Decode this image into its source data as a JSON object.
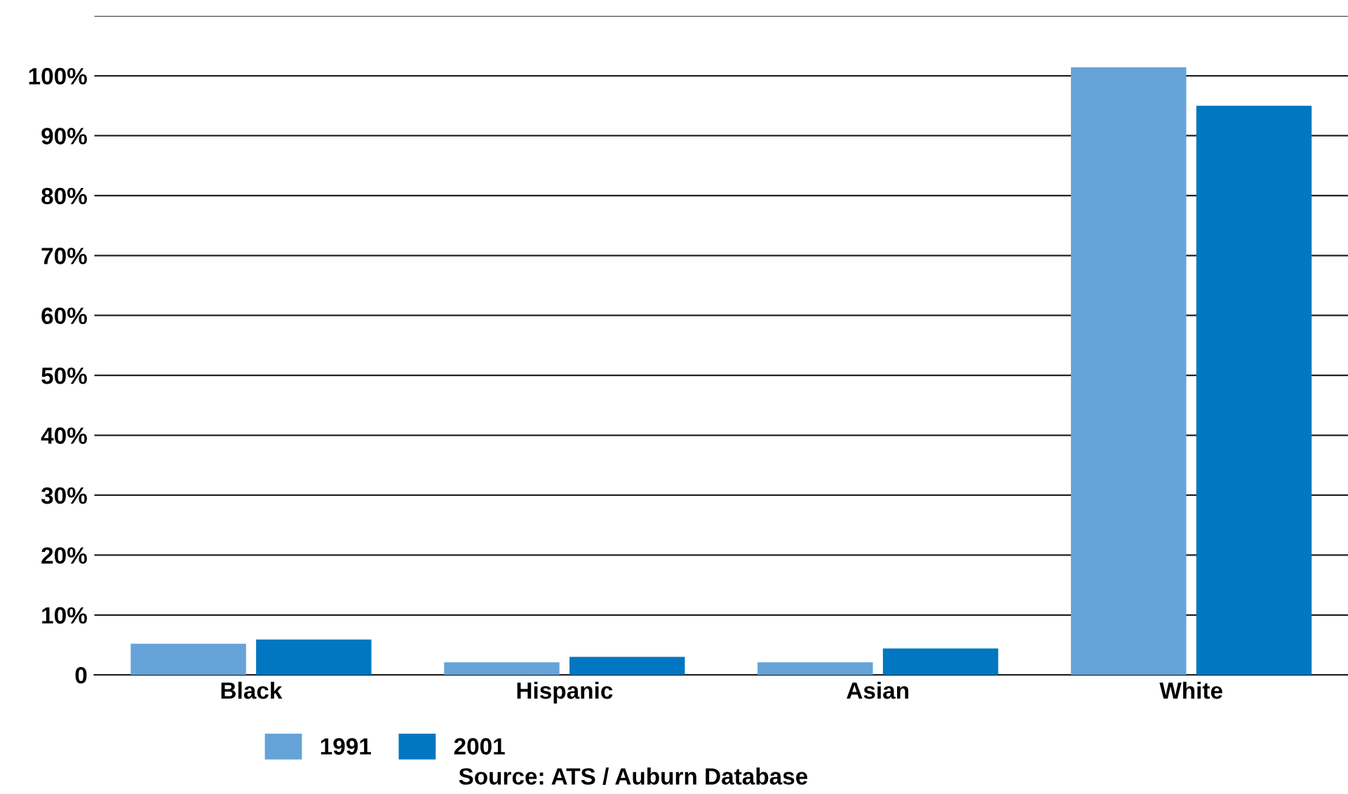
{
  "chart_data": {
    "type": "bar",
    "categories": [
      "Black",
      "Hispanic",
      "Asian",
      "White"
    ],
    "series": [
      {
        "name": "1991",
        "color": "#65a3d8",
        "values": [
          5.2,
          2.1,
          2.1,
          101.4
        ]
      },
      {
        "name": "2001",
        "color": "#0077c0",
        "values": [
          5.9,
          3.0,
          4.4,
          95
        ]
      }
    ],
    "ylim": [
      0,
      110
    ],
    "yticks": [
      {
        "value": 0,
        "label": "0"
      },
      {
        "value": 10,
        "label": "10%"
      },
      {
        "value": 20,
        "label": "20%"
      },
      {
        "value": 30,
        "label": "30%"
      },
      {
        "value": 40,
        "label": "40%"
      },
      {
        "value": 50,
        "label": "50%"
      },
      {
        "value": 60,
        "label": "60%"
      },
      {
        "value": 70,
        "label": "70%"
      },
      {
        "value": 80,
        "label": "80%"
      },
      {
        "value": 90,
        "label": "90%"
      },
      {
        "value": 100,
        "label": "100%"
      },
      {
        "value": 110,
        "label": null
      }
    ],
    "grid": "y",
    "legend": "bottom",
    "annotations": [
      "Source: ATS / Auburn Database"
    ]
  }
}
